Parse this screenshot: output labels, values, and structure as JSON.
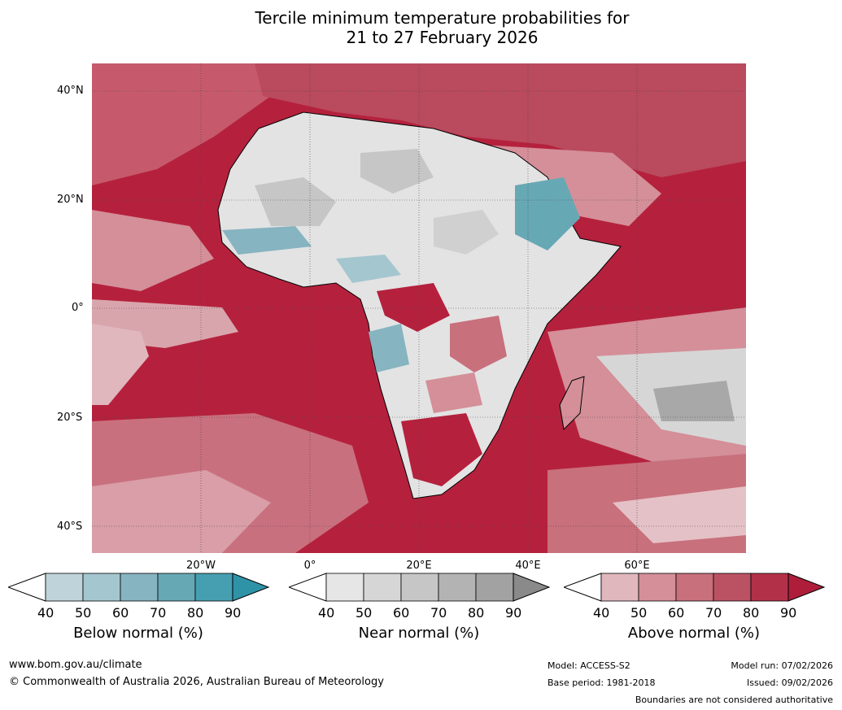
{
  "title_line1": "Tercile minimum temperature probabilities for",
  "title_line2": "21 to 27 February 2026",
  "latitudes": [
    "40°N",
    "20°N",
    "0°",
    "20°S",
    "40°S"
  ],
  "longitudes": [
    "20°W",
    "0°",
    "20°E",
    "40°E",
    "60°E"
  ],
  "colors": {
    "below": [
      "#bed3da",
      "#a4c6cf",
      "#86b4c0",
      "#67a8b5",
      "#469eb1",
      "#2f93a8"
    ],
    "near": [
      "#e6e6e6",
      "#d6d6d6",
      "#c6c6c6",
      "#b3b3b3",
      "#a2a2a2",
      "#8a8a8a"
    ],
    "above": [
      "#e0b7bd",
      "#d48f99",
      "#c8707c",
      "#bb5264",
      "#b23148",
      "#ae1e3b"
    ]
  },
  "colorbars": [
    {
      "label": "Below normal (%)",
      "ticks": [
        "40",
        "50",
        "60",
        "70",
        "80",
        "90"
      ]
    },
    {
      "label": "Near normal (%)",
      "ticks": [
        "40",
        "50",
        "60",
        "70",
        "80",
        "90"
      ]
    },
    {
      "label": "Above normal (%)",
      "ticks": [
        "40",
        "50",
        "60",
        "70",
        "80",
        "90"
      ]
    }
  ],
  "footer": {
    "website": "www.bom.gov.au/climate",
    "copyright": "© Commonwealth of Australia 2026, Australian Bureau of Meteorology",
    "model": "Model: ACCESS-S2",
    "base_period": "Base period: 1981-2018",
    "model_run": "Model run: 07/02/2026",
    "issued": "Issued: 09/02/2026",
    "disclaimer": "Boundaries are not considered authoritative"
  }
}
